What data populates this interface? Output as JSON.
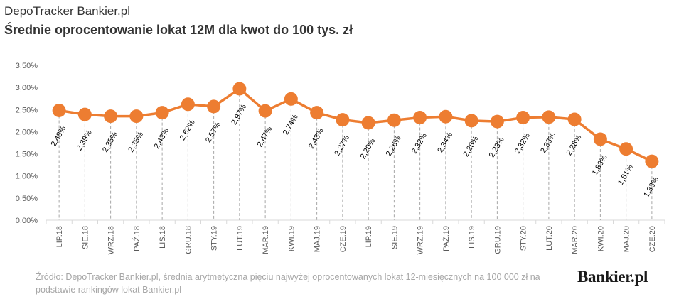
{
  "header": {
    "brand": "DepoTracker Bankier.pl",
    "title": "Średnie oprocentowanie lokat 12M dla kwot do 100 tys. zł"
  },
  "footer": {
    "source": "Źródło: DepoTracker Bankier.pl, średnia arytmetyczna pięciu najwyżej oprocentowanych lokat 12-miesięcznych na 100 000 zł na podstawie rankingów lokat Bankier.pl",
    "logo": "Bankier.pl"
  },
  "colors": {
    "line": "#ed7d31",
    "marker": "#ed7d31",
    "axis": "#d9d9d9",
    "dropline": "#a6a6a6",
    "tick_text": "#595959",
    "data_label": "#000000"
  },
  "chart_data": {
    "type": "line",
    "categories": [
      "LIP.18",
      "SIE.18",
      "WRZ.18",
      "PAŹ.18",
      "LIS.18",
      "GRU.18",
      "STY.19",
      "LUT.19",
      "MAR.19",
      "KWI.19",
      "MAJ.19",
      "CZE.19",
      "LIP.19",
      "SIE.19",
      "WRZ.19",
      "PAŹ.19",
      "LIS.19",
      "GRU.19",
      "STY.20",
      "LUT.20",
      "MAR.20",
      "KWI.20",
      "MAJ.20",
      "CZE.20"
    ],
    "series": [
      {
        "values": [
          2.48,
          2.39,
          2.35,
          2.35,
          2.43,
          2.62,
          2.57,
          2.97,
          2.47,
          2.74,
          2.43,
          2.27,
          2.2,
          2.26,
          2.32,
          2.34,
          2.25,
          2.23,
          2.32,
          2.33,
          2.28,
          1.83,
          1.61,
          1.33
        ],
        "labels": [
          "2,48%",
          "2,39%",
          "2,35%",
          "2,35%",
          "2,43%",
          "2,62%",
          "2,57%",
          "2,97%",
          "2,47%",
          "2,74%",
          "2,43%",
          "2,27%",
          "2,20%",
          "2,26%",
          "2,32%",
          "2,34%",
          "2,25%",
          "2,23%",
          "2,32%",
          "2,33%",
          "2,28%",
          "1,83%",
          "1,61%",
          "1,33%"
        ]
      }
    ],
    "ylim": [
      0,
      3.5
    ],
    "yticks": [
      0,
      0.5,
      1.0,
      1.5,
      2.0,
      2.5,
      3.0,
      3.5
    ],
    "ytick_labels": [
      "0,00%",
      "0,50%",
      "1,00%",
      "1,50%",
      "2,00%",
      "2,50%",
      "3,00%",
      "3,50%"
    ],
    "grid": false,
    "drop_lines": true,
    "legend": "none",
    "xlabel": "",
    "ylabel": ""
  }
}
